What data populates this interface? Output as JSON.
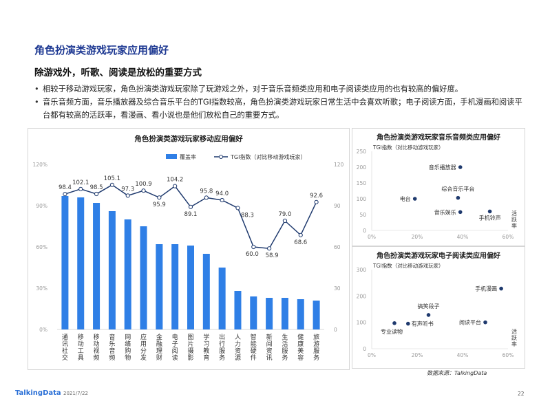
{
  "header": {
    "title": "角色扮演类游戏玩家应用偏好",
    "subtitle": "除游戏外，听歌、阅读是放松的重要方式",
    "bullets": [
      "相较于移动游戏玩家，角色扮演类游戏玩家除了玩游戏之外，对于音乐音频类应用和电子阅读类应用的也有较高的偏好度。",
      "音乐音频方面，音乐播放器及综合音乐平台的TGI指数较高，角色扮演类游戏玩家日常生活中会喜欢听歌；电子阅读方面，手机漫画和阅读平台都有较高的活跃率，看漫画、看小说也是他们放松自己的重要方式。"
    ]
  },
  "colors": {
    "bar": "#2f7fe6",
    "line": "#1f3a6e",
    "point": "#1f3a6e",
    "title": "#1f3a93"
  },
  "chart_data": [
    {
      "type": "bar",
      "title": "角色扮演类游戏玩家移动应用偏好",
      "categories": [
        "通讯社交",
        "移动工具",
        "移动视频",
        "音乐音频",
        "网络购物",
        "应用分发",
        "金融理财",
        "电子阅读",
        "图片摄影",
        "学习教育",
        "出行服务",
        "人力资源",
        "智能硬件",
        "新闻资讯",
        "生活服务",
        "健康美容",
        "旅游服务"
      ],
      "series": [
        {
          "name": "覆盖率",
          "type": "bar",
          "axis": "left",
          "values": [
            97,
            96,
            92,
            86,
            80,
            75,
            62,
            62,
            61,
            55,
            45,
            28,
            24,
            23,
            23,
            22,
            21
          ]
        },
        {
          "name": "TGI指数（对比移动游戏玩家）",
          "type": "line",
          "axis": "right",
          "values": [
            98.4,
            102.1,
            98.5,
            105.1,
            97.3,
            100.9,
            95.9,
            104.2,
            89.1,
            95.8,
            94.0,
            88.3,
            60.0,
            58.9,
            79.0,
            68.6,
            92.6
          ]
        }
      ],
      "y_left": {
        "ticks": [
          "0%",
          "30%",
          "60%",
          "90%",
          "120%"
        ],
        "ylim": [
          0,
          120
        ]
      },
      "y_right": {
        "ticks": [
          "0",
          "30",
          "60",
          "90",
          "120"
        ],
        "ylim": [
          0,
          120
        ]
      },
      "legend": "top"
    },
    {
      "type": "scatter",
      "title": "角色扮演类游戏玩家音乐音频类应用偏好",
      "ylabel": "TGI指数（对比移动游戏玩家）",
      "xlabel": "活跃率",
      "x_ticks": [
        "0%",
        "20%",
        "40%",
        "60%"
      ],
      "xlim": [
        0,
        60
      ],
      "y_ticks": [
        "0",
        "50",
        "100",
        "150",
        "200",
        "250"
      ],
      "ylim": [
        0,
        250
      ],
      "points": [
        {
          "label": "音乐播放器",
          "x": 39,
          "y": 200
        },
        {
          "label": "综合音乐平台",
          "x": 38,
          "y": 103
        },
        {
          "label": "电台",
          "x": 19,
          "y": 100
        },
        {
          "label": "音乐娱乐",
          "x": 39,
          "y": 58
        },
        {
          "label": "手机铃声",
          "x": 52,
          "y": 60
        }
      ]
    },
    {
      "type": "scatter",
      "title": "角色扮演类游戏玩家电子阅读类应用偏好",
      "ylabel": "TGI指数（对比移动游戏玩家）",
      "xlabel": "活跃率",
      "x_ticks": [
        "0%",
        "20%",
        "40%",
        "60%"
      ],
      "xlim": [
        0,
        60
      ],
      "y_ticks": [
        "0",
        "100",
        "200",
        "300"
      ],
      "ylim": [
        0,
        300
      ],
      "points": [
        {
          "label": "手机漫画",
          "x": 57,
          "y": 228
        },
        {
          "label": "搞笑段子",
          "x": 25,
          "y": 128
        },
        {
          "label": "有声听书",
          "x": 16,
          "y": 95
        },
        {
          "label": "专业读物",
          "x": 10,
          "y": 97
        },
        {
          "label": "阅读平台",
          "x": 50,
          "y": 100
        }
      ]
    }
  ],
  "footer": {
    "source": "数据来源：TalkingData",
    "logo": "TalkingData",
    "date": "2021/7/22",
    "page": "22"
  }
}
